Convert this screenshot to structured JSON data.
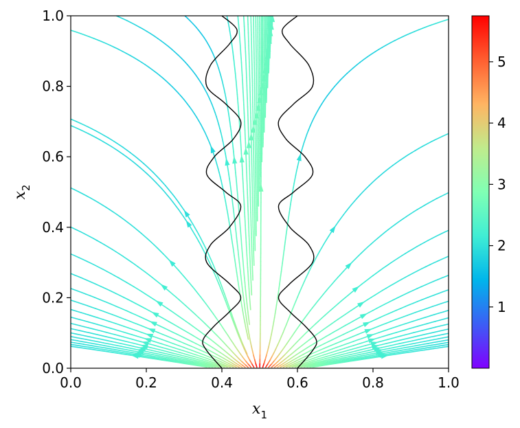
{
  "chart_data": {
    "type": "streamplot",
    "xlabel": "x",
    "xlabel_subscript": "1",
    "ylabel": "x",
    "ylabel_subscript": "2",
    "xlim": [
      0.0,
      1.0
    ],
    "ylim": [
      0.0,
      1.0
    ],
    "x_ticks": [
      0.0,
      0.2,
      0.4,
      0.6,
      0.8,
      1.0
    ],
    "x_tick_labels": [
      "0.0",
      "0.2",
      "0.4",
      "0.6",
      "0.8",
      "1.0"
    ],
    "y_ticks": [
      0.0,
      0.2,
      0.4,
      0.6,
      0.8,
      1.0
    ],
    "y_tick_labels": [
      "0.0",
      "0.2",
      "0.4",
      "0.6",
      "0.8",
      "1.0"
    ],
    "grid": false,
    "colormap": "rainbow",
    "colorbar": {
      "range": [
        0.0,
        5.75
      ],
      "ticks": [
        1,
        2,
        3,
        4,
        5
      ],
      "tick_labels": [
        "1",
        "2",
        "3",
        "4",
        "5"
      ],
      "colors": [
        "#8000ff",
        "#3c5ef5",
        "#00b5eb",
        "#40eed4",
        "#80ffb4",
        "#c0eb8c",
        "#ffb462",
        "#ff5e30",
        "#ff0000"
      ]
    },
    "channel_walls": {
      "color": "#000000",
      "left": {
        "center_x": 0.38,
        "y_samples": [
          0.0,
          0.05,
          0.08,
          0.12,
          0.16,
          0.2,
          0.24,
          0.3,
          0.35,
          0.4,
          0.46,
          0.5,
          0.55,
          0.6,
          0.65,
          0.7,
          0.75,
          0.8,
          0.86,
          0.92,
          0.96,
          1.0
        ],
        "x_samples": [
          0.4,
          0.36,
          0.35,
          0.38,
          0.42,
          0.45,
          0.42,
          0.36,
          0.37,
          0.42,
          0.45,
          0.41,
          0.36,
          0.38,
          0.43,
          0.45,
          0.41,
          0.36,
          0.37,
          0.42,
          0.44,
          0.4
        ]
      },
      "right": {
        "center_x": 0.62,
        "y_samples": [
          0.0,
          0.05,
          0.08,
          0.12,
          0.16,
          0.2,
          0.24,
          0.3,
          0.35,
          0.4,
          0.46,
          0.5,
          0.55,
          0.6,
          0.65,
          0.7,
          0.75,
          0.8,
          0.86,
          0.92,
          0.96,
          1.0
        ],
        "x_samples": [
          0.6,
          0.64,
          0.65,
          0.62,
          0.58,
          0.55,
          0.58,
          0.64,
          0.63,
          0.58,
          0.55,
          0.59,
          0.64,
          0.62,
          0.57,
          0.55,
          0.59,
          0.64,
          0.63,
          0.58,
          0.56,
          0.6
        ]
      }
    },
    "flow": {
      "source": [
        0.5,
        0.0
      ],
      "direction": "outward-from-bottom-center",
      "speed_max": 5.7,
      "speed_min": 0.05
    }
  }
}
